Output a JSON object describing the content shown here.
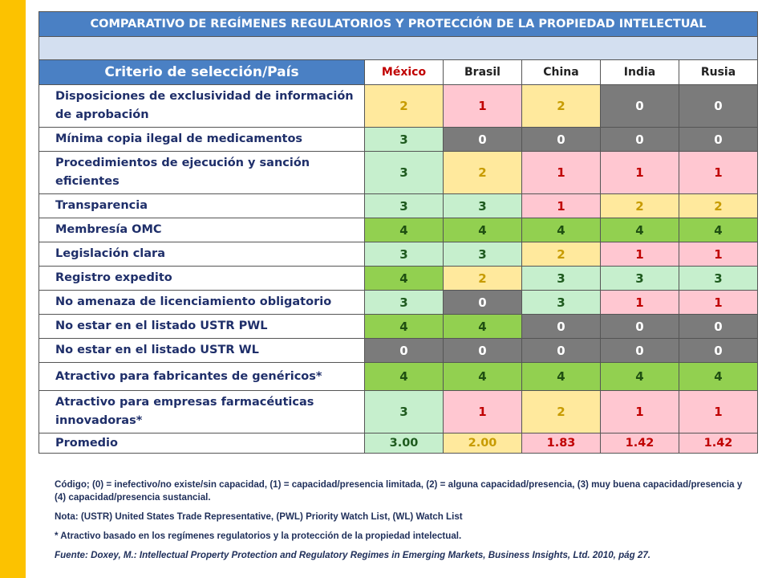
{
  "title": "COMPARATIVO DE REGÍMENES REGULATORIOS Y PROTECCIÓN DE LA PROPIEDAD INTELECTUAL",
  "criteria_header": "Criterio de selección/País",
  "countries": [
    "México",
    "Brasil",
    "China",
    "India",
    "Rusia"
  ],
  "rows": [
    {
      "label": "Disposiciones de exclusividad de información de aprobación",
      "scores": [
        "2",
        "1",
        "2",
        "0",
        "0"
      ]
    },
    {
      "label": "Mínima copia ilegal de medicamentos",
      "scores": [
        "3",
        "0",
        "0",
        "0",
        "0"
      ]
    },
    {
      "label": "Procedimientos de ejecución y sanción eficientes",
      "scores": [
        "3",
        "2",
        "1",
        "1",
        "1"
      ]
    },
    {
      "label": "Transparencia",
      "scores": [
        "3",
        "3",
        "1",
        "2",
        "2"
      ]
    },
    {
      "label": "Membresía OMC",
      "scores": [
        "4",
        "4",
        "4",
        "4",
        "4"
      ]
    },
    {
      "label": "Legislación clara",
      "scores": [
        "3",
        "3",
        "2",
        "1",
        "1"
      ]
    },
    {
      "label": "Registro expedito",
      "scores": [
        "4",
        "2",
        "3",
        "3",
        "3"
      ]
    },
    {
      "label": "No amenaza de licenciamiento obligatorio",
      "scores": [
        "3",
        "0",
        "3",
        "1",
        "1"
      ]
    },
    {
      "label": "No estar en el listado USTR PWL",
      "scores": [
        "4",
        "4",
        "0",
        "0",
        "0"
      ]
    },
    {
      "label": "No estar en el listado USTR WL",
      "scores": [
        "0",
        "0",
        "0",
        "0",
        "0"
      ]
    },
    {
      "label": "Atractivo para fabricantes de genéricos*",
      "scores": [
        "4",
        "4",
        "4",
        "4",
        "4"
      ]
    },
    {
      "label": "Atractivo para empresas farmacéuticas innovadoras*",
      "scores": [
        "3",
        "1",
        "2",
        "1",
        "1"
      ]
    }
  ],
  "average": {
    "label": "Promedio",
    "values": [
      "3.00",
      "2.00",
      "1.83",
      "1.42",
      "1.42"
    ]
  },
  "notes": {
    "code": "Código; (0) = inefectivo/no existe/sin capacidad, (1) = capacidad/presencia limitada, (2) = alguna capacidad/presencia, (3) muy buena capacidad/presencia y (4) capacidad/presencia sustancial.",
    "nota": "Nota: (USTR) United States Trade Representative, (PWL) Priority Watch List, (WL) Watch List",
    "asterisk": "* Atractivo basado en los regímenes regulatorios y la protección de la propiedad intelectual.",
    "source": "Fuente: Doxey, M.: Intellectual Property Protection and Regulatory Regimes in Emerging Markets, Business Insights, Ltd. 2010, pág 27."
  },
  "colors": {
    "score_0": "#7b7b7b",
    "score_1": "#ffc7d1",
    "score_2": "#ffe99d",
    "score_3": "#c6efcd",
    "score_4": "#92d050",
    "header_blue": "#4a80c4",
    "side_bar": "#fcc200"
  }
}
